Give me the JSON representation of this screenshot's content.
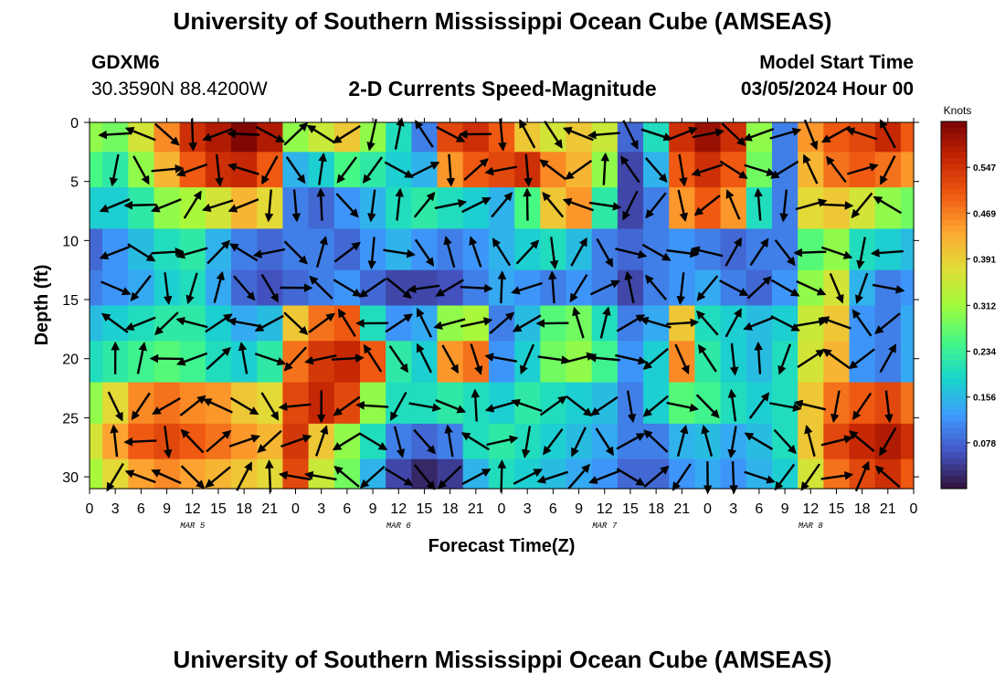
{
  "page": {
    "title": "University of Southern Mississippi Ocean Cube (AMSEAS)",
    "title_repeat": "University of Southern Mississippi Ocean Cube (AMSEAS)",
    "station": "GDXM6",
    "coordinates": "30.3590N  88.4200W",
    "subtitle": "2-D Currents Speed-Magnitude",
    "model_start_label": "Model Start Time",
    "model_start_value": "03/05/2024 Hour 00"
  },
  "chart_data": {
    "type": "heatmap",
    "title": "2-D Currents Speed-Magnitude",
    "xlabel": "Forecast Time(Z)",
    "ylabel": "Depth (ft)",
    "x_ticks": [
      "0",
      "3",
      "6",
      "9",
      "12",
      "15",
      "18",
      "21",
      "0",
      "3",
      "6",
      "9",
      "12",
      "15",
      "18",
      "21",
      "0",
      "3",
      "6",
      "9",
      "12",
      "15",
      "18",
      "21",
      "0",
      "3",
      "6",
      "9",
      "12",
      "15",
      "18",
      "21",
      "0"
    ],
    "date_labels": [
      "MAR 5",
      "MAR 6",
      "MAR 7",
      "MAR 8"
    ],
    "xlim_hours": [
      0,
      96
    ],
    "y_ticks": [
      0,
      5,
      10,
      15,
      20,
      25,
      30
    ],
    "ylim": [
      0,
      31
    ],
    "y_inverted": true,
    "colorbar": {
      "label": "Knots",
      "ticks": [
        0.547,
        0.469,
        0.391,
        0.312,
        0.234,
        0.156,
        0.078
      ],
      "range": [
        0,
        0.625
      ],
      "colors": [
        "#30123b",
        "#4454c4",
        "#3e9bfe",
        "#18d6cb",
        "#46f884",
        "#a2fc3c",
        "#e1dd37",
        "#fea632",
        "#ef5911",
        "#c42503",
        "#7a0403"
      ]
    },
    "depth_levels_ft": [
      1,
      4,
      7,
      11,
      14,
      17,
      20,
      24,
      27,
      30
    ],
    "time_steps_hours": [
      0,
      3,
      6,
      9,
      12,
      15,
      18,
      21,
      24,
      27,
      30,
      33,
      36,
      39,
      42,
      45,
      48,
      51,
      54,
      57,
      60,
      63,
      66,
      69,
      72,
      75,
      78,
      81,
      84,
      87,
      90,
      93,
      96
    ],
    "speed_knots": [
      [
        0.3,
        0.28,
        0.36,
        0.46,
        0.55,
        0.58,
        0.62,
        0.58,
        0.3,
        0.35,
        0.4,
        0.3,
        0.2,
        0.1,
        0.52,
        0.55,
        0.5,
        0.4,
        0.36,
        0.4,
        0.35,
        0.08,
        0.2,
        0.55,
        0.6,
        0.55,
        0.3,
        0.1,
        0.45,
        0.5,
        0.52,
        0.56,
        0.5
      ],
      [
        0.25,
        0.22,
        0.3,
        0.42,
        0.5,
        0.55,
        0.56,
        0.5,
        0.15,
        0.18,
        0.25,
        0.22,
        0.18,
        0.15,
        0.45,
        0.5,
        0.52,
        0.55,
        0.46,
        0.42,
        0.3,
        0.05,
        0.15,
        0.5,
        0.55,
        0.5,
        0.28,
        0.1,
        0.42,
        0.48,
        0.5,
        0.48,
        0.45
      ],
      [
        0.18,
        0.18,
        0.22,
        0.3,
        0.32,
        0.36,
        0.42,
        0.38,
        0.1,
        0.08,
        0.12,
        0.15,
        0.2,
        0.22,
        0.2,
        0.18,
        0.15,
        0.25,
        0.4,
        0.45,
        0.22,
        0.05,
        0.1,
        0.45,
        0.5,
        0.45,
        0.2,
        0.1,
        0.38,
        0.4,
        0.36,
        0.3,
        0.28
      ],
      [
        0.08,
        0.12,
        0.16,
        0.2,
        0.22,
        0.15,
        0.1,
        0.08,
        0.1,
        0.1,
        0.08,
        0.12,
        0.15,
        0.12,
        0.1,
        0.12,
        0.15,
        0.18,
        0.2,
        0.16,
        0.1,
        0.08,
        0.1,
        0.12,
        0.1,
        0.08,
        0.1,
        0.1,
        0.26,
        0.3,
        0.2,
        0.18,
        0.16
      ],
      [
        0.1,
        0.12,
        0.14,
        0.18,
        0.2,
        0.14,
        0.08,
        0.06,
        0.08,
        0.1,
        0.12,
        0.08,
        0.05,
        0.05,
        0.06,
        0.1,
        0.14,
        0.12,
        0.1,
        0.12,
        0.1,
        0.05,
        0.1,
        0.12,
        0.14,
        0.1,
        0.08,
        0.12,
        0.3,
        0.36,
        0.15,
        0.1,
        0.12
      ],
      [
        0.16,
        0.18,
        0.2,
        0.22,
        0.22,
        0.18,
        0.14,
        0.16,
        0.4,
        0.48,
        0.5,
        0.2,
        0.12,
        0.14,
        0.3,
        0.32,
        0.1,
        0.16,
        0.26,
        0.28,
        0.2,
        0.1,
        0.14,
        0.4,
        0.2,
        0.18,
        0.16,
        0.18,
        0.35,
        0.4,
        0.12,
        0.1,
        0.14
      ],
      [
        0.2,
        0.22,
        0.24,
        0.26,
        0.24,
        0.2,
        0.18,
        0.22,
        0.48,
        0.54,
        0.56,
        0.5,
        0.22,
        0.18,
        0.45,
        0.48,
        0.12,
        0.18,
        0.28,
        0.3,
        0.24,
        0.12,
        0.18,
        0.46,
        0.22,
        0.18,
        0.16,
        0.2,
        0.36,
        0.42,
        0.12,
        0.1,
        0.14
      ],
      [
        0.3,
        0.38,
        0.46,
        0.48,
        0.46,
        0.45,
        0.4,
        0.38,
        0.52,
        0.56,
        0.52,
        0.3,
        0.2,
        0.2,
        0.22,
        0.2,
        0.18,
        0.22,
        0.2,
        0.18,
        0.16,
        0.1,
        0.18,
        0.26,
        0.24,
        0.2,
        0.18,
        0.2,
        0.4,
        0.48,
        0.5,
        0.52,
        0.48
      ],
      [
        0.36,
        0.44,
        0.5,
        0.52,
        0.5,
        0.48,
        0.45,
        0.42,
        0.54,
        0.4,
        0.3,
        0.2,
        0.1,
        0.08,
        0.1,
        0.2,
        0.22,
        0.2,
        0.18,
        0.16,
        0.14,
        0.1,
        0.1,
        0.15,
        0.16,
        0.14,
        0.16,
        0.2,
        0.4,
        0.52,
        0.56,
        0.58,
        0.55
      ],
      [
        0.32,
        0.38,
        0.44,
        0.46,
        0.44,
        0.42,
        0.4,
        0.38,
        0.52,
        0.35,
        0.28,
        0.15,
        0.05,
        0.02,
        0.04,
        0.15,
        0.2,
        0.18,
        0.16,
        0.14,
        0.12,
        0.08,
        0.08,
        0.12,
        0.14,
        0.12,
        0.15,
        0.18,
        0.36,
        0.48,
        0.52,
        0.55,
        0.5
      ]
    ],
    "vectors_note": "black arrows show current direction at each grid point"
  }
}
